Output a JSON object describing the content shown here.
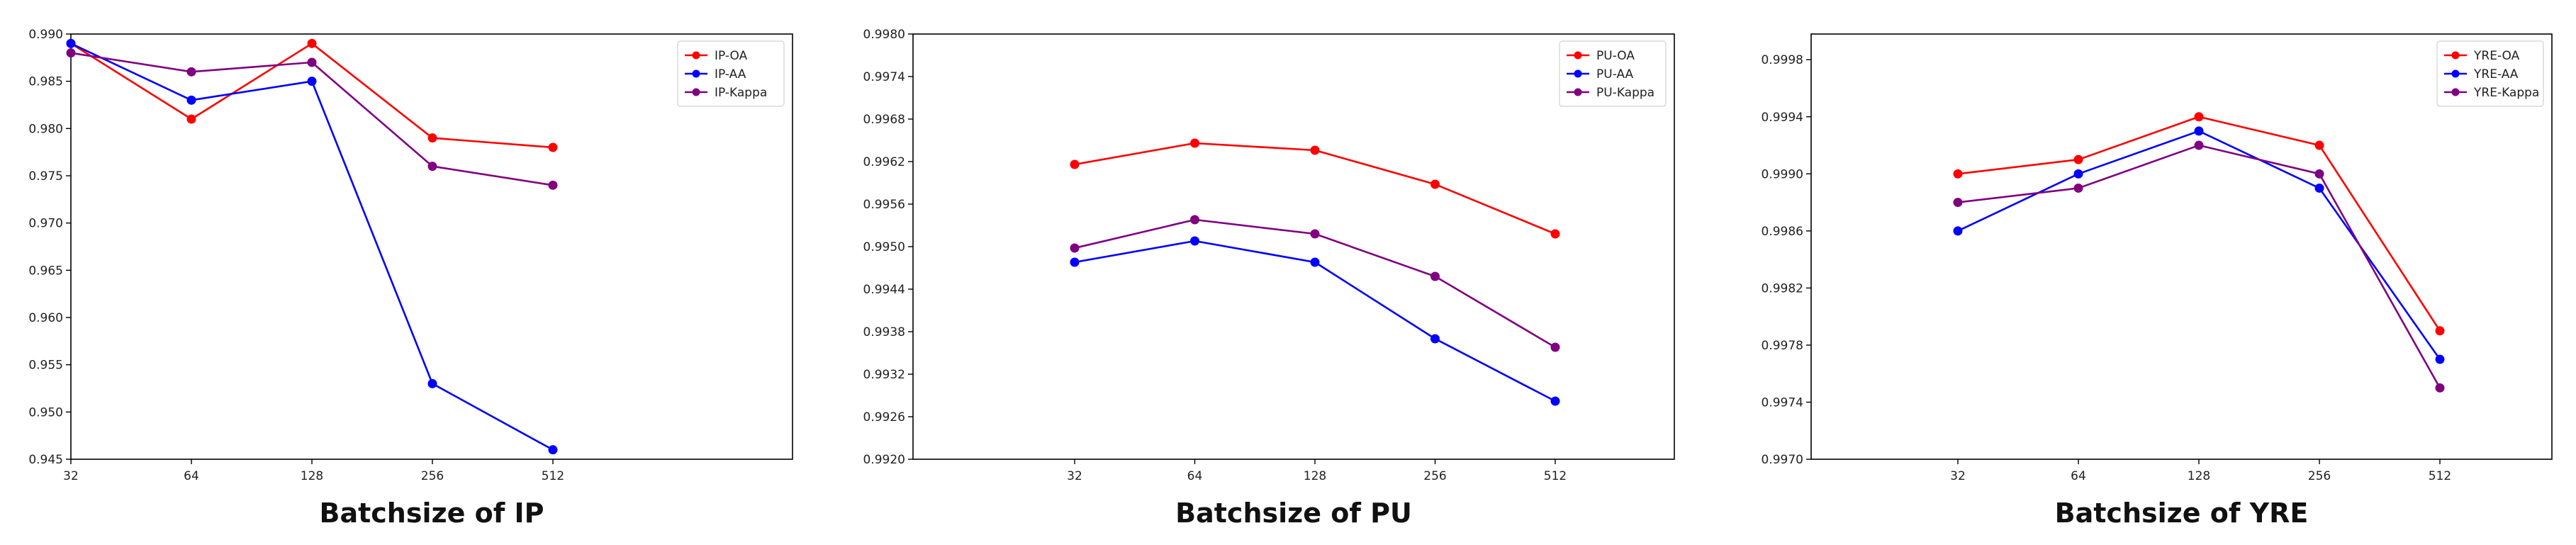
{
  "chart_data": [
    {
      "type": "line",
      "title": "",
      "xlabel": "Batchsize of IP",
      "ylabel": "",
      "categories": [
        "32",
        "64",
        "128",
        "256",
        "512"
      ],
      "ylim": [
        0.945,
        0.99
      ],
      "yticks": [
        "0.945",
        "0.950",
        "0.955",
        "0.960",
        "0.965",
        "0.970",
        "0.975",
        "0.980",
        "0.985",
        "0.990"
      ],
      "grid": false,
      "legend_position": "top-right",
      "series": [
        {
          "name": "IP-OA",
          "color": "#ff0000",
          "values": [
            0.989,
            0.981,
            0.989,
            0.979,
            0.978
          ]
        },
        {
          "name": "IP-AA",
          "color": "#0000ff",
          "values": [
            0.989,
            0.983,
            0.985,
            0.953,
            0.946
          ]
        },
        {
          "name": "IP-Kappa",
          "color": "#800080",
          "values": [
            0.988,
            0.986,
            0.987,
            0.976,
            0.974
          ]
        }
      ]
    },
    {
      "type": "line",
      "title": "",
      "xlabel": "Batchsize of PU",
      "ylabel": "",
      "categories": [
        "32",
        "64",
        "128",
        "256",
        "512"
      ],
      "ylim": [
        0.992,
        0.998
      ],
      "yticks": [
        "0.9920",
        "0.9926",
        "0.9932",
        "0.9938",
        "0.9944",
        "0.9950",
        "0.9956",
        "0.9962",
        "0.9968",
        "0.9974",
        "0.9980"
      ],
      "grid": false,
      "legend_position": "top-right",
      "series": [
        {
          "name": "PU-OA",
          "color": "#ff0000",
          "values": [
            0.99616,
            0.99646,
            0.99636,
            0.99588,
            0.99518
          ]
        },
        {
          "name": "PU-AA",
          "color": "#0000ff",
          "values": [
            0.99478,
            0.99508,
            0.99478,
            0.9937,
            0.99282
          ]
        },
        {
          "name": "PU-Kappa",
          "color": "#800080",
          "values": [
            0.99498,
            0.99538,
            0.99518,
            0.99458,
            0.99358
          ]
        }
      ]
    },
    {
      "type": "line",
      "title": "",
      "xlabel": "Batchsize of YRE",
      "ylabel": "",
      "categories": [
        "32",
        "64",
        "128",
        "256",
        "512"
      ],
      "ylim": [
        0.997,
        0.99998
      ],
      "yticks": [
        "0.9970",
        "0.9974",
        "0.9978",
        "0.9982",
        "0.9986",
        "0.9990",
        "0.9994",
        "0.9998"
      ],
      "grid": false,
      "legend_position": "top-right",
      "series": [
        {
          "name": "YRE-OA",
          "color": "#ff0000",
          "values": [
            0.999,
            0.9991,
            0.9994,
            0.9992,
            0.9979
          ]
        },
        {
          "name": "YRE-AA",
          "color": "#0000ff",
          "values": [
            0.9986,
            0.999,
            0.9993,
            0.9989,
            0.9977
          ]
        },
        {
          "name": "YRE-Kappa",
          "color": "#800080",
          "values": [
            0.9988,
            0.9989,
            0.9992,
            0.999,
            0.9975
          ]
        }
      ]
    }
  ]
}
